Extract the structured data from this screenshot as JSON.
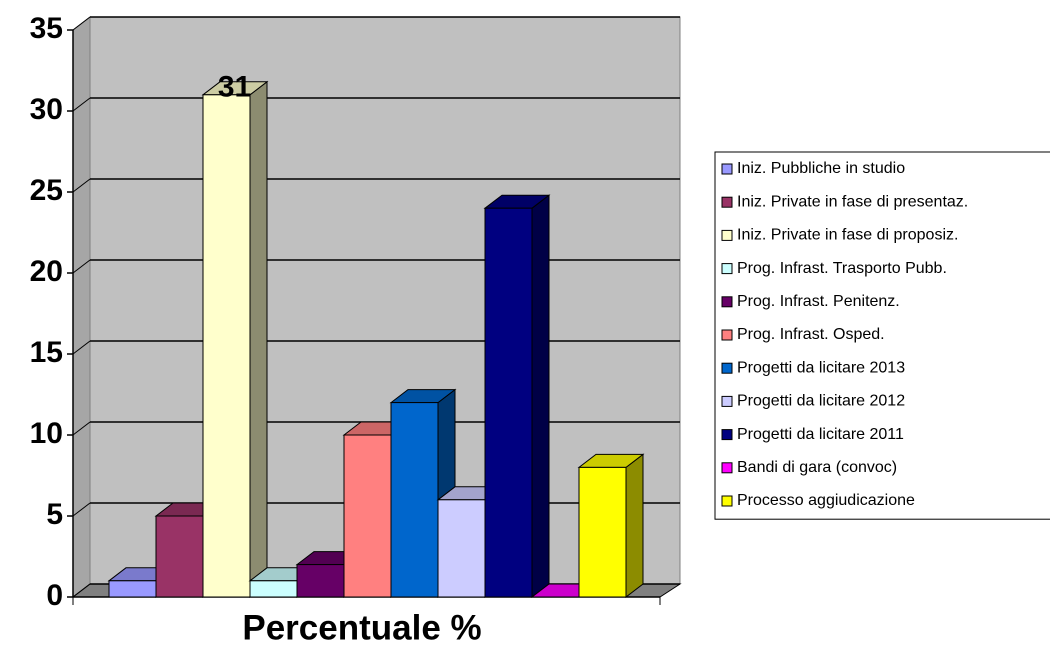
{
  "chart_data": {
    "type": "bar3d",
    "categories": [
      "Percentuale %"
    ],
    "series": [
      {
        "name": "Iniz. Pubbliche in studio",
        "color": "#9999ff",
        "values": [
          1
        ]
      },
      {
        "name": "Iniz. Private in fase di presentaz.",
        "color": "#993366",
        "values": [
          5
        ]
      },
      {
        "name": "Iniz. Private in fase di proposiz.",
        "color": "#ffffcc",
        "values": [
          31
        ],
        "value_labels": [
          "31"
        ]
      },
      {
        "name": "Prog. Infrast. Trasporto Pubb.",
        "color": "#ccffff",
        "values": [
          1
        ]
      },
      {
        "name": "Prog. Infrast. Penitenz.",
        "color": "#660066",
        "values": [
          2
        ]
      },
      {
        "name": "Prog. Infrast. Osped.",
        "color": "#ff8080",
        "values": [
          10
        ]
      },
      {
        "name": "Progetti da licitare 2013",
        "color": "#0066cc",
        "values": [
          12
        ]
      },
      {
        "name": "Progetti da licitare 2012",
        "color": "#ccccff",
        "values": [
          6
        ]
      },
      {
        "name": "Progetti da licitare 2011",
        "color": "#000080",
        "values": [
          24
        ]
      },
      {
        "name": "Bandi di gara (convoc)",
        "color": "#ff00ff",
        "values": [
          0
        ]
      },
      {
        "name": "Processo aggiudicazione",
        "color": "#ffff00",
        "values": [
          8
        ]
      }
    ],
    "ylim": [
      0,
      35
    ],
    "yticks": [
      0,
      5,
      10,
      15,
      20,
      25,
      30,
      35
    ],
    "grid": true,
    "legend": "right"
  }
}
